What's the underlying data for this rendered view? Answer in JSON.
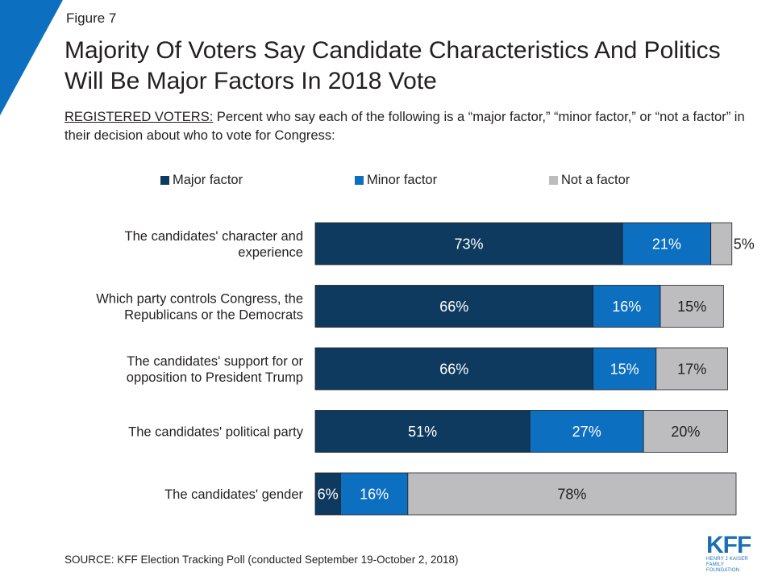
{
  "figure_label": "Figure 7",
  "title": "Majority Of Voters Say Candidate Characteristics And Politics Will Be Major Factors In 2018 Vote",
  "subtitle_lead": "REGISTERED VOTERS:",
  "subtitle_rest": " Percent who say each of the following is a “major factor,” “minor factor,” or “not a factor” in their decision about who to vote for Congress:",
  "source": "SOURCE: KFF Election Tracking Poll (conducted September 19-October 2, 2018)",
  "logo": {
    "text": "KFF",
    "sub1": "HENRY J KAISER",
    "sub2": "FAMILY FOUNDATION"
  },
  "colors": {
    "major": "#0f3a5f",
    "minor": "#0d6fc0",
    "not": "#bdbdbf",
    "accent": "#0d6fc0"
  },
  "chart_data": {
    "type": "bar",
    "orientation": "horizontal",
    "stacked": true,
    "legend_position": "top",
    "grid": false,
    "xlim": [
      0,
      100
    ],
    "categories": [
      [
        "The candidates' character and",
        "experience"
      ],
      [
        "Which party controls Congress, the",
        "Republicans or the Democrats"
      ],
      [
        "The candidates' support for or",
        "opposition to President Trump"
      ],
      [
        "The candidates' political party"
      ],
      [
        "The candidates' gender"
      ]
    ],
    "series": [
      {
        "name": "Major factor",
        "color": "#0f3a5f",
        "values": [
          73,
          66,
          66,
          51,
          6
        ],
        "labels": [
          "73%",
          "66%",
          "66%",
          "51%",
          "6%"
        ]
      },
      {
        "name": "Minor factor",
        "color": "#0d6fc0",
        "values": [
          21,
          16,
          15,
          27,
          16
        ],
        "labels": [
          "21%",
          "16%",
          "15%",
          "27%",
          "16%"
        ]
      },
      {
        "name": "Not a factor",
        "color": "#bdbdbf",
        "values": [
          5,
          15,
          17,
          20,
          78
        ],
        "labels": [
          "5%",
          "15%",
          "17%",
          "20%",
          "78%"
        ]
      }
    ]
  }
}
